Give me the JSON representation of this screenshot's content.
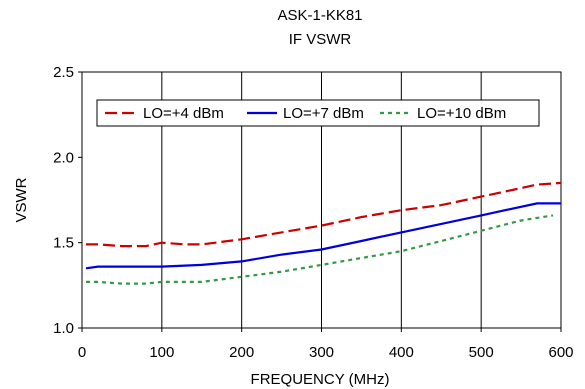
{
  "chart_data": {
    "type": "line",
    "title": "ASK-1-KK81",
    "subtitle": "IF VSWR",
    "xlabel": "FREQUENCY (MHz)",
    "ylabel": "VSWR",
    "xlim": [
      0,
      600
    ],
    "ylim": [
      1.0,
      2.5
    ],
    "xticks": [
      0,
      100,
      200,
      300,
      400,
      500,
      600
    ],
    "yticks": [
      1.0,
      1.5,
      2.0,
      2.5
    ],
    "xtick_labels": [
      "0",
      "100",
      "200",
      "300",
      "400",
      "500",
      "600"
    ],
    "ytick_labels": [
      "1.0",
      "1.5",
      "2.0",
      "2.5"
    ],
    "grid": "vertical",
    "legend_position": "top",
    "series": [
      {
        "name": "LO=+4 dBm",
        "color": "#cc0000",
        "dash": "long-dash",
        "x": [
          5,
          20,
          50,
          80,
          100,
          130,
          150,
          200,
          250,
          300,
          350,
          400,
          450,
          500,
          550,
          570,
          600
        ],
        "y": [
          1.49,
          1.49,
          1.48,
          1.48,
          1.5,
          1.49,
          1.49,
          1.52,
          1.56,
          1.6,
          1.65,
          1.69,
          1.72,
          1.77,
          1.82,
          1.84,
          1.85
        ]
      },
      {
        "name": "LO=+7 dBm",
        "color": "#0000dd",
        "dash": "solid",
        "x": [
          5,
          20,
          50,
          80,
          100,
          150,
          200,
          250,
          300,
          350,
          400,
          450,
          500,
          530,
          570,
          600
        ],
        "y": [
          1.35,
          1.36,
          1.36,
          1.36,
          1.36,
          1.37,
          1.39,
          1.43,
          1.46,
          1.51,
          1.56,
          1.61,
          1.66,
          1.69,
          1.73,
          1.73
        ]
      },
      {
        "name": "LO=+10 dBm",
        "color": "#339944",
        "dash": "short-dash",
        "x": [
          5,
          20,
          50,
          80,
          100,
          150,
          200,
          250,
          300,
          350,
          400,
          450,
          500,
          550,
          590
        ],
        "y": [
          1.27,
          1.27,
          1.26,
          1.26,
          1.27,
          1.27,
          1.3,
          1.33,
          1.37,
          1.41,
          1.45,
          1.51,
          1.57,
          1.63,
          1.66
        ]
      }
    ]
  }
}
